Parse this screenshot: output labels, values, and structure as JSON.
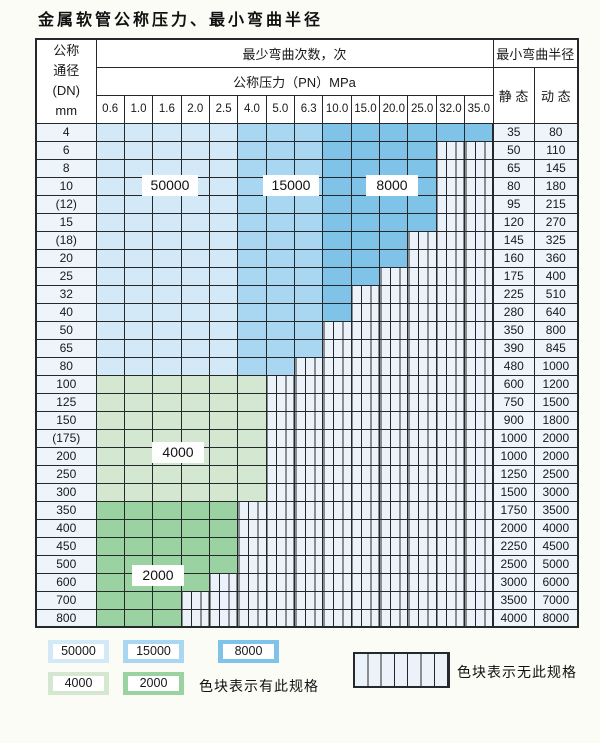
{
  "title": "金属软管公称压力、最小弯曲半径",
  "table": {
    "dn_header_lines": [
      "公称",
      "通径",
      "(DN)",
      "mm"
    ],
    "cycles_header": "最少弯曲次数，次",
    "pressure_header": "公称压力（PN）MPa",
    "radius_header": "最小弯曲半径",
    "static_label": "静 态",
    "dynamic_label": "动 态",
    "pressure_columns": [
      "0.6",
      "1.0",
      "1.6",
      "2.0",
      "2.5",
      "4.0",
      "5.0",
      "6.3",
      "10.0",
      "15.0",
      "20.0",
      "25.0",
      "32.0",
      "35.0"
    ],
    "blue_bands": [
      {
        "from": 0,
        "to": 4,
        "cycles": "50000"
      },
      {
        "from": 5,
        "to": 7,
        "cycles": "15000"
      },
      {
        "from": 8,
        "to": 13,
        "cycles": "8000"
      }
    ],
    "rows": [
      {
        "dn": "4",
        "band": "blue",
        "colored": 14,
        "static": "35",
        "dynamic": "80"
      },
      {
        "dn": "6",
        "band": "blue",
        "colored": 12,
        "static": "50",
        "dynamic": "110"
      },
      {
        "dn": "8",
        "band": "blue",
        "colored": 12,
        "static": "65",
        "dynamic": "145"
      },
      {
        "dn": "10",
        "band": "blue",
        "colored": 12,
        "static": "80",
        "dynamic": "180"
      },
      {
        "dn": "(12)",
        "band": "blue",
        "colored": 12,
        "static": "95",
        "dynamic": "215"
      },
      {
        "dn": "15",
        "band": "blue",
        "colored": 12,
        "static": "120",
        "dynamic": "270"
      },
      {
        "dn": "(18)",
        "band": "blue",
        "colored": 11,
        "static": "145",
        "dynamic": "325"
      },
      {
        "dn": "20",
        "band": "blue",
        "colored": 11,
        "static": "160",
        "dynamic": "360"
      },
      {
        "dn": "25",
        "band": "blue",
        "colored": 10,
        "static": "175",
        "dynamic": "400"
      },
      {
        "dn": "32",
        "band": "blue",
        "colored": 9,
        "static": "225",
        "dynamic": "510"
      },
      {
        "dn": "40",
        "band": "blue",
        "colored": 9,
        "static": "280",
        "dynamic": "640"
      },
      {
        "dn": "50",
        "band": "blue",
        "colored": 8,
        "static": "350",
        "dynamic": "800"
      },
      {
        "dn": "65",
        "band": "blue",
        "colored": 8,
        "static": "390",
        "dynamic": "845"
      },
      {
        "dn": "80",
        "band": "blue",
        "colored": 7,
        "static": "480",
        "dynamic": "1000"
      },
      {
        "dn": "100",
        "band": "g4000",
        "colored": 6,
        "static": "600",
        "dynamic": "1200"
      },
      {
        "dn": "125",
        "band": "g4000",
        "colored": 6,
        "static": "750",
        "dynamic": "1500"
      },
      {
        "dn": "150",
        "band": "g4000",
        "colored": 6,
        "static": "900",
        "dynamic": "1800"
      },
      {
        "dn": "(175)",
        "band": "g4000",
        "colored": 6,
        "static": "1000",
        "dynamic": "2000"
      },
      {
        "dn": "200",
        "band": "g4000",
        "colored": 6,
        "static": "1000",
        "dynamic": "2000"
      },
      {
        "dn": "250",
        "band": "g4000",
        "colored": 6,
        "static": "1250",
        "dynamic": "2500"
      },
      {
        "dn": "300",
        "band": "g4000",
        "colored": 6,
        "static": "1500",
        "dynamic": "3000"
      },
      {
        "dn": "350",
        "band": "g2000",
        "colored": 5,
        "static": "1750",
        "dynamic": "3500"
      },
      {
        "dn": "400",
        "band": "g2000",
        "colored": 5,
        "static": "2000",
        "dynamic": "4000"
      },
      {
        "dn": "450",
        "band": "g2000",
        "colored": 5,
        "static": "2250",
        "dynamic": "4500"
      },
      {
        "dn": "500",
        "band": "g2000",
        "colored": 5,
        "static": "2500",
        "dynamic": "5000"
      },
      {
        "dn": "600",
        "band": "g2000",
        "colored": 4,
        "static": "3000",
        "dynamic": "6000"
      },
      {
        "dn": "700",
        "band": "g2000",
        "colored": 3,
        "static": "3500",
        "dynamic": "7000"
      },
      {
        "dn": "800",
        "band": "g2000",
        "colored": 3,
        "static": "4000",
        "dynamic": "8000"
      }
    ]
  },
  "table_labels": {
    "l50000": "50000",
    "l15000": "15000",
    "l8000": "8000",
    "l4000": "4000",
    "l2000": "2000"
  },
  "legend": {
    "items": [
      {
        "value": "50000",
        "color_key": "c50000"
      },
      {
        "value": "15000",
        "color_key": "c15000"
      },
      {
        "value": "8000",
        "color_key": "c8000"
      },
      {
        "value": "4000",
        "color_key": "c4000"
      },
      {
        "value": "2000",
        "color_key": "c2000"
      }
    ],
    "has_spec_text": "色块表示有此规格",
    "no_spec_text": "色块表示无此规格"
  },
  "colors": {
    "c50000": "#d3e9f7",
    "c15000": "#a9d6f1",
    "c8000": "#7fc3e8",
    "c4000": "#d4e8d1",
    "c2000": "#9bd2a2",
    "hatchbg": "#ebf2f9",
    "labelbg": "#edf4fa",
    "border": "#26292c"
  }
}
